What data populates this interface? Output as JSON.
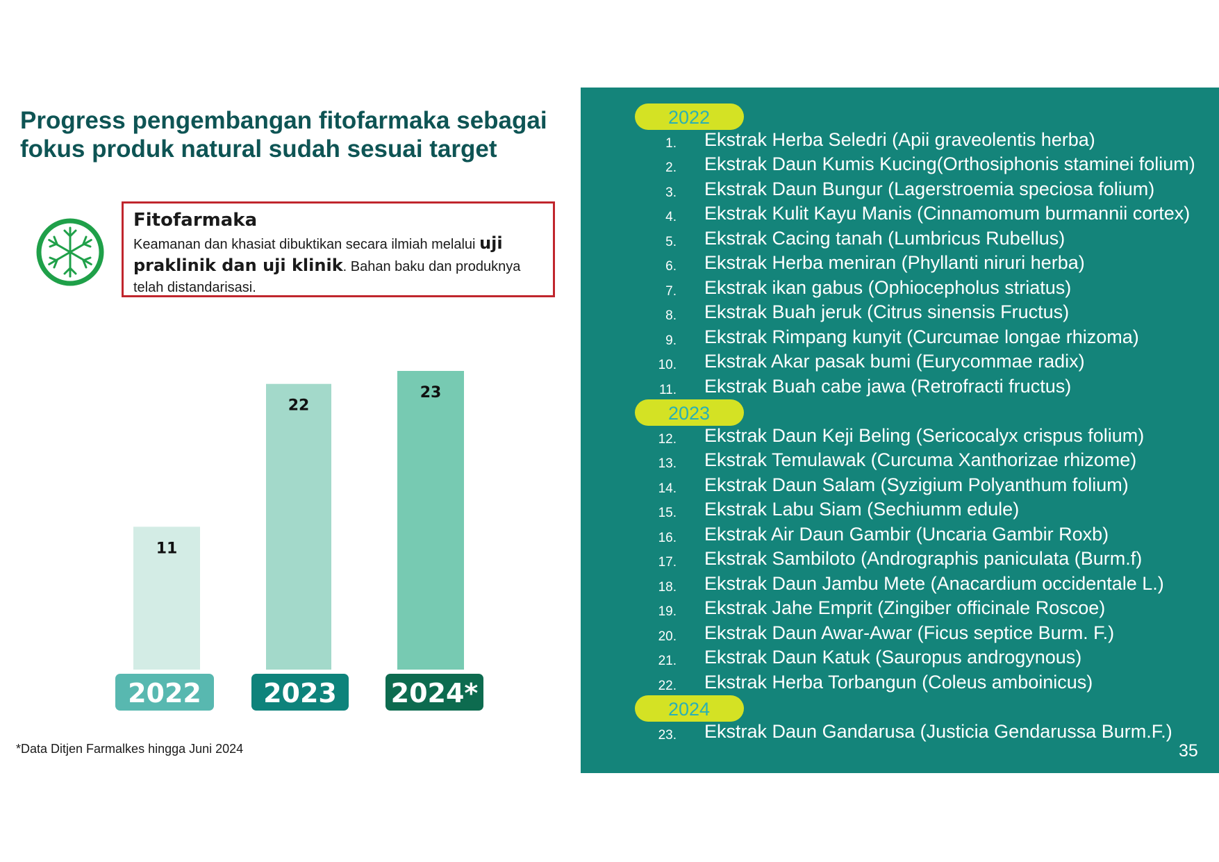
{
  "slide": {
    "title_line1": "Progress pengembangan fitofarmaka sebagai",
    "title_line2": "fokus produk natural sudah sesuai target",
    "page_number": "35",
    "footnote": "*Data Ditjen Farmalkes hingga Juni 2024"
  },
  "definition": {
    "icon": "snowflake-icon",
    "title": "Fitofarmaka",
    "text_part1": "Keamanan dan khasiat dibuktikan secara ilmiah melalui ",
    "text_bold": "uji praklinik dan uji klinik",
    "text_part2": ". Bahan baku dan produknya telah distandarisasi."
  },
  "chart_data": {
    "type": "bar",
    "categories": [
      "2022",
      "2023",
      "2024*"
    ],
    "values": [
      11,
      22,
      23
    ],
    "ylim": [
      0,
      23
    ],
    "grid": false,
    "bar_colors": [
      "#d3ece5",
      "#a3d9ca",
      "#77cab2"
    ],
    "label_colors": [
      "#58b8b0",
      "#0e837b",
      "#0d6b4f"
    ]
  },
  "list": {
    "groups": [
      {
        "year": "2022",
        "items": [
          {
            "num": "1",
            "text": "Ekstrak Herba Seledri (Apii graveolentis herba)"
          },
          {
            "num": "2",
            "text": "Ekstrak Daun Kumis Kucing(Orthosiphonis staminei folium)"
          },
          {
            "num": "3",
            "text": "Ekstrak Daun Bungur (Lagerstroemia speciosa folium)"
          },
          {
            "num": "4",
            "text": "Ekstrak Kulit Kayu Manis (Cinnamomum burmannii cortex)"
          },
          {
            "num": "5",
            "text": "Ekstrak Cacing tanah (Lumbricus Rubellus)"
          },
          {
            "num": "6",
            "text": "Ekstrak Herba meniran (Phyllanti niruri herba)"
          },
          {
            "num": "7",
            "text": "Ekstrak ikan gabus (Ophiocepholus striatus)"
          },
          {
            "num": "8",
            "text": "Ekstrak Buah jeruk (Citrus sinensis Fructus)"
          },
          {
            "num": "9",
            "text": "Ekstrak Rimpang kunyit (Curcumae longae rhizoma)"
          },
          {
            "num": "10",
            "text": "Ekstrak Akar pasak bumi (Eurycommae radix)"
          },
          {
            "num": "11",
            "text": "Ekstrak Buah cabe jawa (Retrofracti fructus)"
          }
        ]
      },
      {
        "year": "2023",
        "items": [
          {
            "num": "12",
            "text": "Ekstrak Daun Keji Beling (Sericocalyx crispus folium)"
          },
          {
            "num": "13",
            "text": "Ekstrak Temulawak (Curcuma Xanthorizae rhizome)"
          },
          {
            "num": "14",
            "text": "Ekstrak Daun Salam (Syzigium Polyanthum folium)"
          },
          {
            "num": "15",
            "text": "Ekstrak Labu Siam (Sechiumm edule)"
          },
          {
            "num": "16",
            "text": "Ekstrak Air Daun Gambir (Uncaria Gambir Roxb)"
          },
          {
            "num": "17",
            "text": "Ekstrak Sambiloto (Andrographis paniculata (Burm.f)"
          },
          {
            "num": "18",
            "text": "Ekstrak Daun Jambu Mete (Anacardium occidentale L.)"
          },
          {
            "num": "19",
            "text": "Ekstrak Jahe Emprit (Zingiber officinale Roscoe)"
          },
          {
            "num": "20",
            "text": "Ekstrak Daun Awar-Awar (Ficus septice Burm. F.)"
          },
          {
            "num": "21",
            "text": "Ekstrak Daun Katuk (Sauropus androgynous)"
          },
          {
            "num": "22",
            "text": "Ekstrak Herba Torbangun (Coleus amboinicus)"
          }
        ]
      },
      {
        "year": "2024",
        "items": [
          {
            "num": "23",
            "text": "Ekstrak Daun Gandarusa (Justicia Gendarussa Burm.F.)"
          }
        ]
      }
    ]
  },
  "colors": {
    "title": "#0e5454",
    "panel": "#14847a",
    "pill": "#d4e224",
    "year_text": "#2ab0b4",
    "box_border": "#c0262d",
    "icon": "#1fa049"
  }
}
